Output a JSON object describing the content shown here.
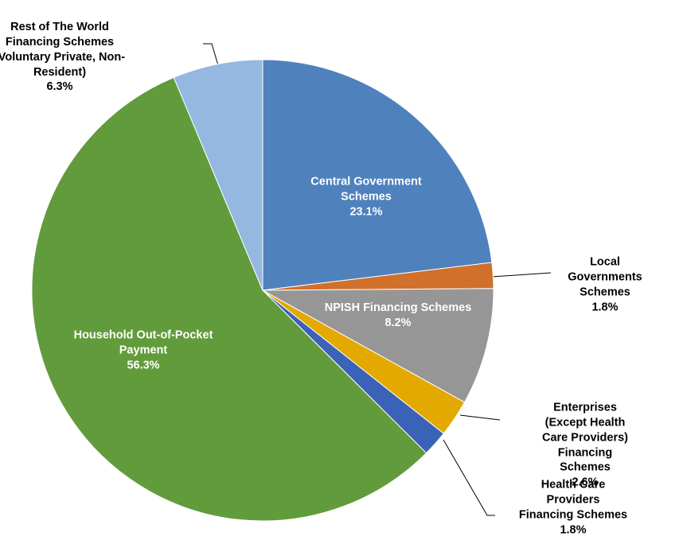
{
  "chart_data": {
    "type": "pie",
    "categories": [
      "Central Government\nSchemes",
      "Local Governments\nSchemes",
      "NPISH Financing Schemes",
      "Enterprises (Except Health\nCare Providers) Financing\nSchemes",
      "Health Care Providers\nFinancing Schemes",
      "Household Out-of-Pocket\nPayment",
      "Rest of The World\nFinancing Schemes\n(Voluntary Private, Non-\nResident)"
    ],
    "values": [
      23.1,
      1.8,
      8.2,
      2.6,
      1.8,
      56.3,
      6.3
    ],
    "value_labels": [
      "23.1%",
      "1.8%",
      "8.2%",
      "2.6%",
      "1.8%",
      "56.3%",
      "6.3%"
    ],
    "colors": [
      "#4f81bd",
      "#d0702b",
      "#969696",
      "#e3a900",
      "#3a62b6",
      "#629b3c",
      "#95b8e0"
    ]
  }
}
